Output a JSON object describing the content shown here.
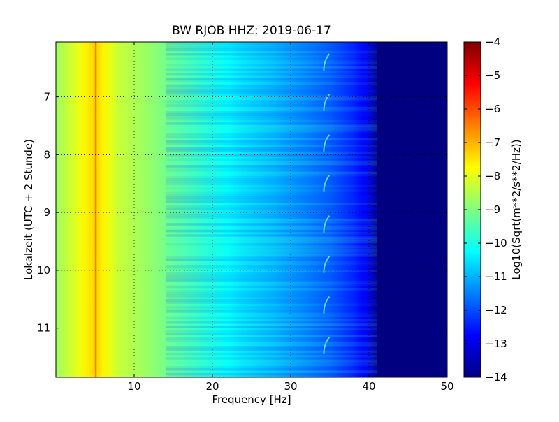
{
  "chart_data": {
    "type": "heatmap",
    "title": "BW RJOB HHZ: 2019-06-17",
    "xlabel": "Frequency [Hz]",
    "ylabel": "Lokalzeit (UTC + 2 Stunde)",
    "xlim": [
      0,
      50
    ],
    "ylim": [
      6.05,
      11.85
    ],
    "y_inverted": true,
    "x_ticks": [
      10,
      20,
      30,
      40,
      50
    ],
    "y_ticks": [
      7,
      8,
      9,
      10,
      11
    ],
    "grid": true,
    "colormap": "jet",
    "colorbar": {
      "label": "Log10(Sqrt(m**2/s**2/Hz))",
      "range": [
        -14,
        -4
      ],
      "ticks": [
        -4,
        -5,
        -6,
        -7,
        -8,
        -9,
        -10,
        -11,
        -12,
        -13,
        -14
      ]
    },
    "spectrum_profile": {
      "frequency_hz": [
        0,
        2,
        5,
        8,
        12,
        16,
        20,
        24,
        28,
        32,
        35,
        38,
        40,
        41,
        45,
        50
      ],
      "log10_amplitude": [
        -8.7,
        -8.2,
        -7.3,
        -8.3,
        -8.8,
        -9.4,
        -10.0,
        -10.5,
        -10.9,
        -11.4,
        -11.8,
        -12.4,
        -13.0,
        -14.0,
        -14.0,
        -14.0
      ]
    },
    "features": [
      {
        "label": "narrow line",
        "frequency_hz": 5.1,
        "log10_amplitude": -6.3
      },
      {
        "label": "repeating chirp",
        "frequency_hz": 34.5,
        "times": [
          6.4,
          7.1,
          7.8,
          8.5,
          9.2,
          9.9,
          10.6,
          11.3
        ]
      }
    ]
  }
}
